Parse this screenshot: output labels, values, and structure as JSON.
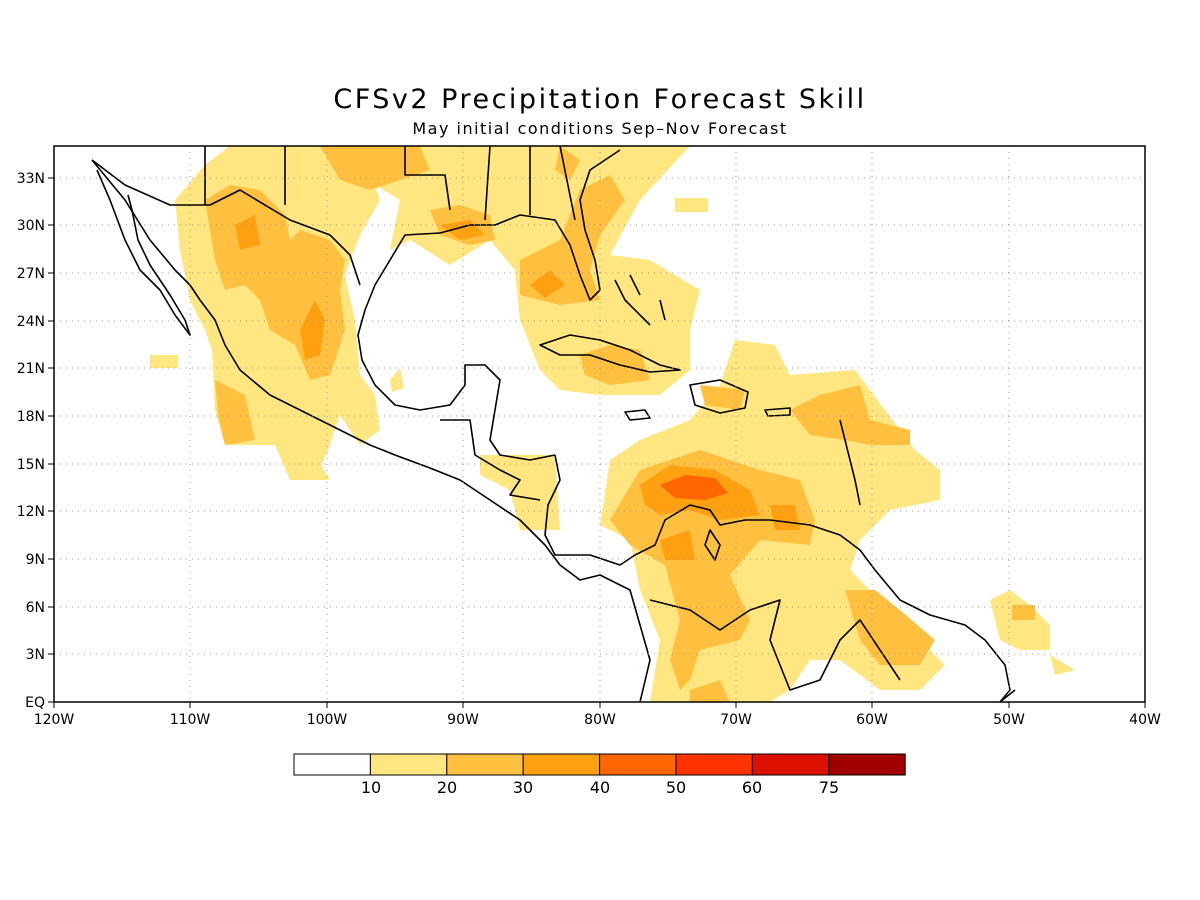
{
  "title": "CFSv2 Precipitation Forecast Skill",
  "subtitle": "May initial conditions   Sep–Nov Forecast",
  "map": {
    "lon_range": [
      -120,
      -40
    ],
    "lat_range": [
      0,
      35
    ],
    "lon_ticks": [
      "120W",
      "110W",
      "100W",
      "90W",
      "80W",
      "70W",
      "60W",
      "50W",
      "40W"
    ],
    "lat_ticks": [
      "EQ",
      "3N",
      "6N",
      "9N",
      "12N",
      "15N",
      "18N",
      "21N",
      "24N",
      "27N",
      "30N",
      "33N"
    ],
    "grid": true,
    "legend_position": "bottom-center"
  },
  "colorbar": {
    "labels": [
      "10",
      "20",
      "30",
      "40",
      "50",
      "60",
      "75"
    ],
    "colors": [
      "#ffffff",
      "#ffe680",
      "#ffc040",
      "#ffa010",
      "#ff6600",
      "#ff3300",
      "#dd1100",
      "#a00000"
    ]
  },
  "colors": {
    "level1": "#ffe680",
    "level2": "#ffc040",
    "level3": "#ffa010",
    "level4": "#ff6600",
    "coast": "#000000"
  }
}
